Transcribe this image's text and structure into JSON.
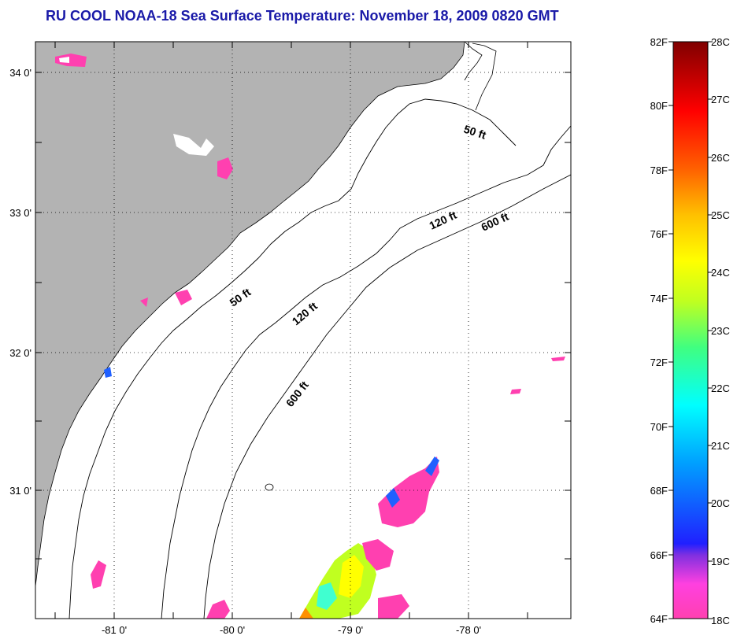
{
  "title": "RU COOL  NOAA-18  Sea Surface Temperature:  November 18, 2009 0820 GMT",
  "map": {
    "lon_labels": [
      "-81 0'",
      "-80 0'",
      "-79 0'",
      "-78 0'"
    ],
    "lat_labels": [
      "34 0'",
      "33 0'",
      "32 0'",
      "31 0'"
    ],
    "contour_labels": [
      "50 ft",
      "120 ft",
      "600 ft",
      "50 ft",
      "120 ft",
      "600 ft"
    ],
    "colors": {
      "land": "#b3b3b3",
      "water": "#ffffff",
      "frame": "#000000"
    }
  },
  "colorbar": {
    "fahrenheit_labels": [
      "82F",
      "80F",
      "78F",
      "76F",
      "74F",
      "72F",
      "70F",
      "68F",
      "66F",
      "64F"
    ],
    "celsius_labels": [
      "28C",
      "27C",
      "26C",
      "25C",
      "24C",
      "23C",
      "22C",
      "21C",
      "20C",
      "19C",
      "18C"
    ]
  }
}
